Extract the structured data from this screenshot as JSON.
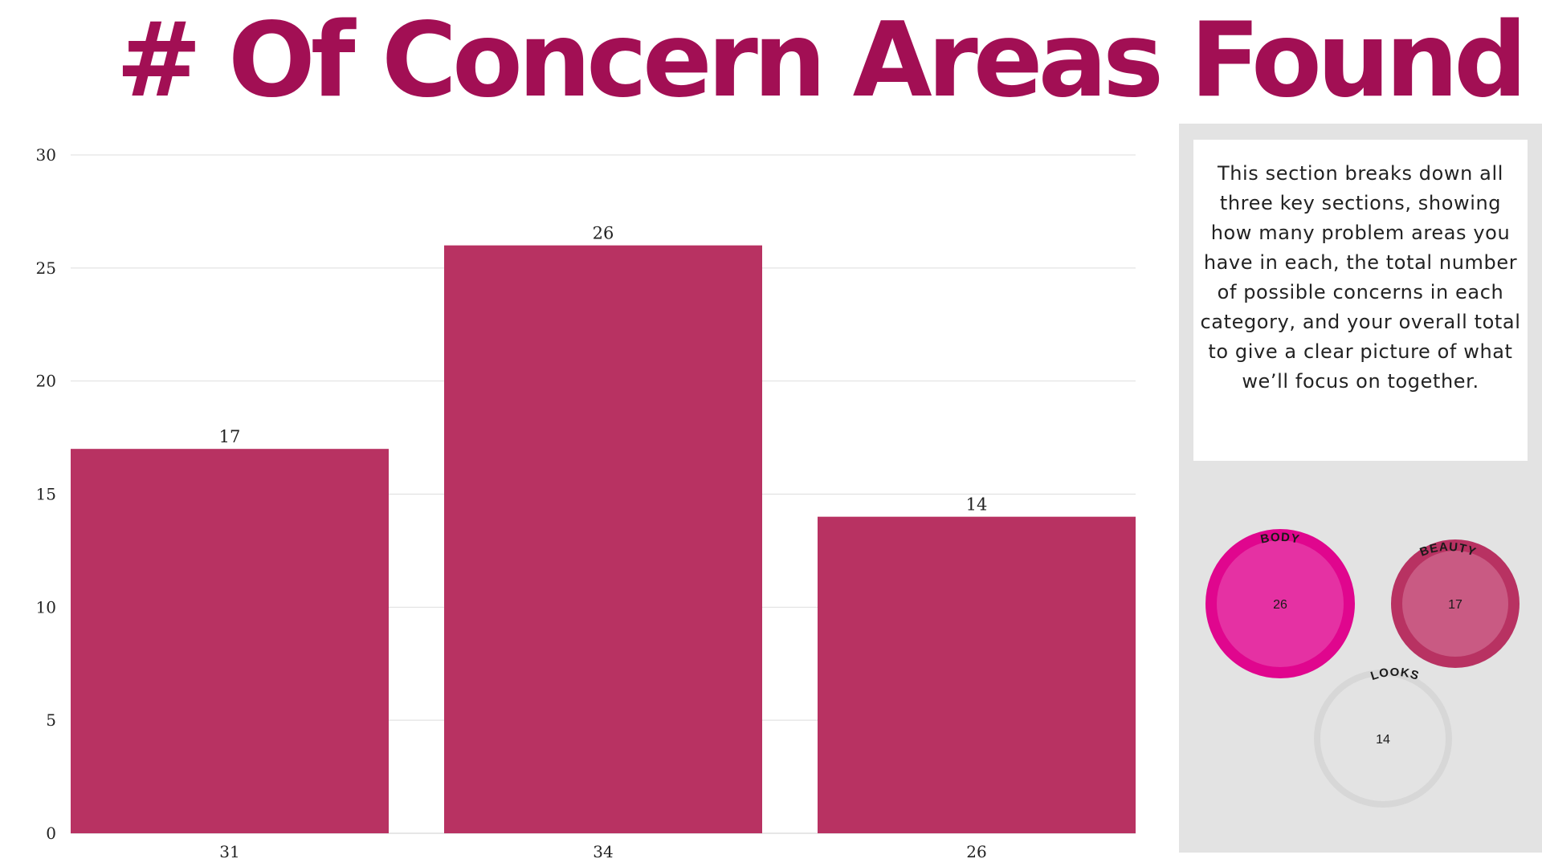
{
  "title": "# Of Concern Areas Found",
  "chart_data": {
    "type": "bar",
    "categories": [
      "31",
      "34",
      "26"
    ],
    "values": [
      17,
      26,
      14
    ],
    "data_labels": [
      "17",
      "26",
      "14"
    ],
    "ylim": [
      0,
      30
    ],
    "yticks": [
      "0",
      "5",
      "10",
      "15",
      "20",
      "25",
      "30"
    ],
    "grid": true,
    "bar_color": "#b83262"
  },
  "panel": {
    "description": "This section breaks down all three key sections, showing how many problem areas you have in each, the total number of possible concerns in each category, and your overall total to give a clear picture of what we’ll focus on together.",
    "circles": [
      {
        "label": "BODY",
        "value": "26",
        "ring_color": "#e0068e",
        "fill_color": "#e531a3"
      },
      {
        "label": "BEAUTY",
        "value": "17",
        "ring_color": "#b83262",
        "fill_color": "#c95a83"
      },
      {
        "label": "LOOKS",
        "value": "14",
        "ring_color": "#d7d7d7",
        "fill_color": "#e3e3e3"
      }
    ]
  }
}
